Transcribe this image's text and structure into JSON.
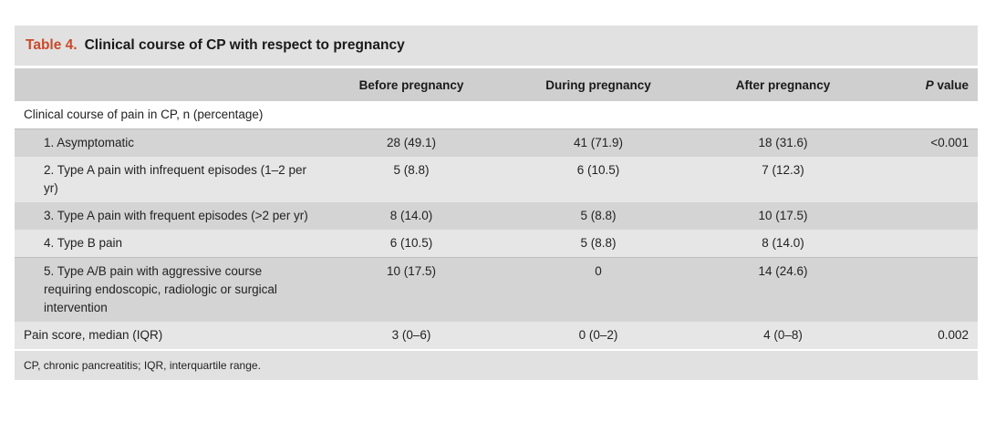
{
  "title": {
    "number": "Table 4.",
    "text": "Clinical course of CP with respect to pregnancy"
  },
  "headers": {
    "c1": "Before pregnancy",
    "c2": "During pregnancy",
    "c3": "After pregnancy",
    "p_italic": "P",
    "p_rest": "value"
  },
  "section_label": "Clinical course of pain in CP, n (percentage)",
  "rows": [
    {
      "label": "1. Asymptomatic",
      "before": "28 (49.1)",
      "during": "41 (71.9)",
      "after": "18 (31.6)",
      "p": "<0.001"
    },
    {
      "label": "2. Type A pain with infrequent episodes (1–2 per yr)",
      "before": "5 (8.8)",
      "during": "6 (10.5)",
      "after": "7 (12.3)",
      "p": ""
    },
    {
      "label": "3. Type A pain with frequent episodes (>2 per yr)",
      "before": "8 (14.0)",
      "during": "5 (8.8)",
      "after": "10 (17.5)",
      "p": ""
    },
    {
      "label": "4. Type B pain",
      "before": "6 (10.5)",
      "during": "5 (8.8)",
      "after": "8 (14.0)",
      "p": ""
    },
    {
      "label": "5. Type A/B pain with aggressive course requiring endoscopic, radiologic or surgical intervention",
      "before": "10 (17.5)",
      "during": "0",
      "after": "14 (24.6)",
      "p": ""
    }
  ],
  "pain_score": {
    "label": "Pain score, median (IQR)",
    "before": "3 (0–6)",
    "during": "0 (0–2)",
    "after": "4 (0–8)",
    "p": "0.002"
  },
  "footnote": "CP, chronic pancreatitis; IQR, interquartile range."
}
